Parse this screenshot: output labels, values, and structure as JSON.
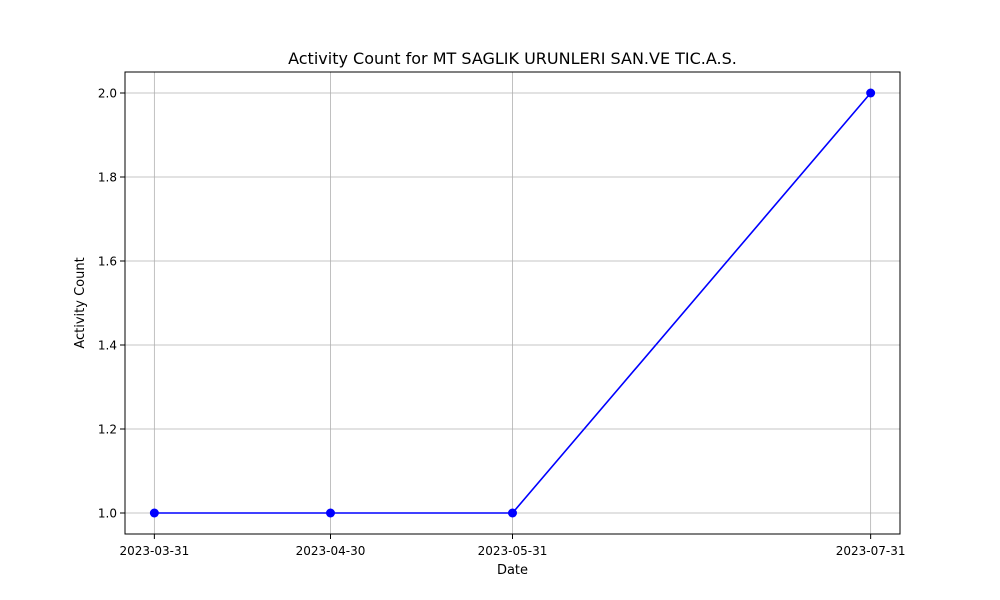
{
  "chart_data": {
    "type": "line",
    "title": "Activity Count for MT SAGLIK URUNLERI SAN.VE TIC.A.S.",
    "xlabel": "Date",
    "ylabel": "Activity Count",
    "x": [
      "2023-03-31",
      "2023-04-30",
      "2023-05-31",
      "2023-07-31"
    ],
    "series": [
      {
        "values": [
          1.0,
          1.0,
          1.0,
          2.0
        ],
        "color": "#0000ff",
        "marker": "circle"
      }
    ],
    "xlim": [
      "2023-03-26",
      "2023-08-05"
    ],
    "ylim": [
      0.95,
      2.05
    ],
    "yticks": [
      1.0,
      1.2,
      1.4,
      1.6,
      1.8,
      2.0
    ],
    "ytick_labels": [
      "1.0",
      "1.2",
      "1.4",
      "1.6",
      "1.8",
      "2.0"
    ],
    "grid": true,
    "legend": false
  }
}
